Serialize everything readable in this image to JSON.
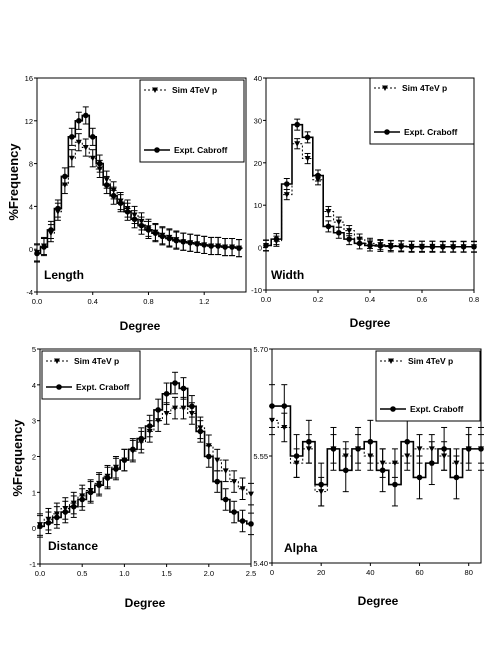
{
  "figure": {
    "ylabel": "%Frequency"
  },
  "chart_data": [
    {
      "type": "line",
      "name": "Length",
      "xlabel": "Degree",
      "ylabel": "%Frequency",
      "xlim": [
        0,
        1.5
      ],
      "ylim": [
        -4,
        16
      ],
      "xticks": [
        0,
        0.4,
        0.8,
        1.2
      ],
      "xtick_labels": [
        "0.0",
        "0.4",
        "0.8",
        "1.2"
      ],
      "yticks": [
        -4,
        0,
        4,
        8,
        12,
        16
      ],
      "ytick_labels": [
        "-4",
        "0",
        "4",
        "8",
        "12",
        "16"
      ],
      "x": [
        0.0,
        0.05,
        0.1,
        0.15,
        0.2,
        0.25,
        0.3,
        0.35,
        0.4,
        0.45,
        0.5,
        0.55,
        0.6,
        0.65,
        0.7,
        0.75,
        0.8,
        0.85,
        0.9,
        0.95,
        1.0,
        1.05,
        1.1,
        1.15,
        1.2,
        1.25,
        1.3,
        1.35,
        1.4,
        1.45
      ],
      "series": [
        {
          "name": "Sim 4TeV   p",
          "style": "dotted-triangle",
          "values": [
            -0.3,
            0.3,
            1.5,
            3.5,
            6.0,
            8.5,
            10.0,
            9.5,
            8.5,
            7.5,
            6.5,
            5.5,
            4.5,
            3.8,
            3.2,
            2.6,
            2.0,
            1.6,
            1.3,
            1.1,
            0.9,
            0.7,
            0.6,
            0.5,
            0.4,
            0.3,
            0.3,
            0.2,
            0.2,
            0.1
          ],
          "errors": 0.8
        },
        {
          "name": "Expt. Cabroff",
          "style": "solid-circle",
          "values": [
            -0.4,
            0.2,
            1.8,
            3.8,
            6.8,
            10.5,
            12.0,
            12.5,
            10.5,
            8.0,
            6.0,
            5.0,
            4.3,
            3.5,
            2.8,
            2.2,
            1.8,
            1.5,
            1.2,
            1.0,
            0.8,
            0.7,
            0.6,
            0.5,
            0.4,
            0.3,
            0.3,
            0.2,
            0.2,
            0.1
          ],
          "errors": 0.8
        }
      ]
    },
    {
      "type": "line",
      "name": "Width",
      "xlabel": "Degree",
      "ylabel": "",
      "xlim": [
        0,
        0.8
      ],
      "ylim": [
        -10,
        40
      ],
      "xticks": [
        0,
        0.2,
        0.4,
        0.6,
        0.8
      ],
      "xtick_labels": [
        "0.0",
        "0.2",
        "0.4",
        "0.6",
        "0.8"
      ],
      "yticks": [
        -10,
        0,
        10,
        20,
        30,
        40
      ],
      "ytick_labels": [
        "-10",
        "0",
        "10",
        "20",
        "30",
        "40"
      ],
      "x": [
        0.0,
        0.04,
        0.08,
        0.12,
        0.16,
        0.2,
        0.24,
        0.28,
        0.32,
        0.36,
        0.4,
        0.44,
        0.48,
        0.52,
        0.56,
        0.6,
        0.64,
        0.68,
        0.72,
        0.76,
        0.8
      ],
      "series": [
        {
          "name": "Sim 4TeV   p",
          "style": "dotted-triangle",
          "values": [
            0.5,
            1.5,
            12.5,
            24.5,
            21.0,
            16.0,
            8.5,
            6.0,
            4.0,
            2.0,
            1.0,
            0.7,
            0.5,
            0.4,
            0.3,
            0.3,
            0.3,
            0.2,
            0.2,
            0.2,
            0.2
          ],
          "errors": 1.2
        },
        {
          "name": "Expt. Craboff",
          "style": "solid-circle",
          "values": [
            0.5,
            2.0,
            15.0,
            29.0,
            26.0,
            17.0,
            5.0,
            3.5,
            2.0,
            1.0,
            0.5,
            0.4,
            0.3,
            0.3,
            0.2,
            0.2,
            0.2,
            0.2,
            0.2,
            0.2,
            0.2
          ],
          "errors": 1.3
        }
      ]
    },
    {
      "type": "line",
      "name": "Distance",
      "xlabel": "Degree",
      "ylabel": "%Frequency",
      "xlim": [
        0,
        2.5
      ],
      "ylim": [
        -1,
        5
      ],
      "xticks": [
        0,
        0.5,
        1.0,
        1.5,
        2.0,
        2.5
      ],
      "xtick_labels": [
        "0.0",
        "0.5",
        "1.0",
        "1.5",
        "2.0",
        "2.5"
      ],
      "yticks": [
        -1,
        0,
        1,
        2,
        3,
        4,
        5
      ],
      "ytick_labels": [
        "-1",
        "0",
        "1",
        "2",
        "3",
        "4",
        "5"
      ],
      "x": [
        0.0,
        0.1,
        0.2,
        0.3,
        0.4,
        0.5,
        0.6,
        0.7,
        0.8,
        0.9,
        1.0,
        1.1,
        1.2,
        1.3,
        1.4,
        1.5,
        1.6,
        1.7,
        1.8,
        1.9,
        2.0,
        2.1,
        2.2,
        2.3,
        2.4,
        2.5
      ],
      "series": [
        {
          "name": "Sim 4TeV   p",
          "style": "dotted-triangle",
          "values": [
            0.1,
            0.25,
            0.4,
            0.55,
            0.7,
            0.9,
            1.05,
            1.25,
            1.45,
            1.7,
            1.9,
            2.15,
            2.4,
            2.7,
            3.0,
            3.2,
            3.35,
            3.35,
            3.2,
            2.8,
            2.3,
            1.9,
            1.6,
            1.3,
            1.1,
            0.95
          ],
          "errors": 0.3
        },
        {
          "name": "Expt. Craboff",
          "style": "solid-circle",
          "values": [
            0.05,
            0.15,
            0.3,
            0.45,
            0.6,
            0.8,
            1.0,
            1.2,
            1.4,
            1.65,
            1.9,
            2.2,
            2.5,
            2.85,
            3.3,
            3.75,
            4.05,
            3.9,
            3.4,
            2.7,
            2.0,
            1.3,
            0.8,
            0.45,
            0.2,
            0.12
          ],
          "errors": 0.3
        }
      ]
    },
    {
      "type": "line",
      "name": "Alpha",
      "xlabel": "Degree",
      "ylabel": "",
      "xlim": [
        0,
        85
      ],
      "ylim": [
        5.4,
        5.7
      ],
      "xticks": [
        0,
        20,
        40,
        60,
        80
      ],
      "xtick_labels": [
        "0",
        "20",
        "40",
        "60",
        "80"
      ],
      "yticks": [
        5.4,
        5.55,
        5.7
      ],
      "ytick_labels": [
        "5.40",
        "5.55",
        "5.70"
      ],
      "x": [
        0,
        5,
        10,
        15,
        20,
        25,
        30,
        35,
        40,
        45,
        50,
        55,
        60,
        65,
        70,
        75,
        80,
        85
      ],
      "series": [
        {
          "name": "Sim 4TeV   p",
          "style": "dotted-triangle",
          "values": [
            5.6,
            5.59,
            5.54,
            5.56,
            5.5,
            5.56,
            5.55,
            5.56,
            5.55,
            5.54,
            5.54,
            5.55,
            5.56,
            5.56,
            5.55,
            5.54,
            5.56,
            5.56
          ],
          "errors": 0.02
        },
        {
          "name": "Expt. Craboff",
          "style": "solid-circle",
          "values": [
            5.62,
            5.62,
            5.55,
            5.57,
            5.51,
            5.56,
            5.53,
            5.56,
            5.57,
            5.53,
            5.51,
            5.57,
            5.52,
            5.54,
            5.56,
            5.52,
            5.56,
            5.56
          ],
          "errors": 0.03
        }
      ]
    }
  ]
}
